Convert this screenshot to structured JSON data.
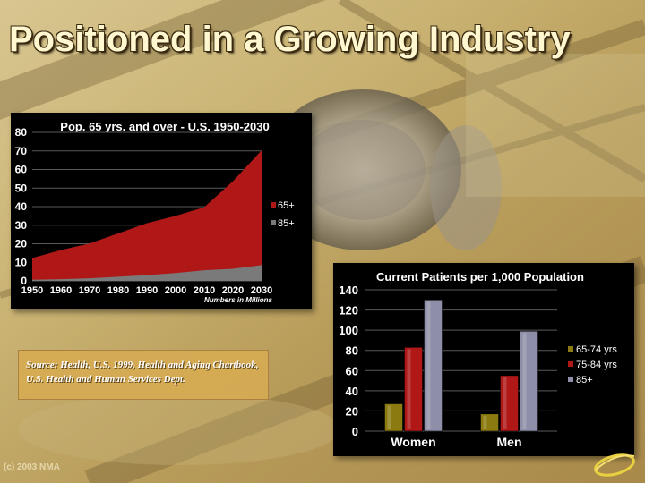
{
  "slide": {
    "title": "Positioned in a Growing Industry",
    "source": "Source: Health, U.S. 1999, Health and Aging Chartbook, U.S. Health and Human Services Dept.",
    "copyright": "(c) 2003 NMA"
  },
  "colors": {
    "red": "#b01818",
    "gray": "#7a7a7a",
    "olive": "#8a7a10",
    "lavender": "#8e8ea8",
    "panel": "#000000"
  },
  "chart_data": [
    {
      "type": "area",
      "title": "Pop. 65 yrs. and over - U.S. 1950-2030",
      "xlabel": "Numbers in Millions",
      "ylabel": "",
      "x": [
        1950,
        1960,
        1970,
        1980,
        1990,
        2000,
        2010,
        2020,
        2030
      ],
      "ylim": [
        0,
        80
      ],
      "yticks": [
        0,
        10,
        20,
        30,
        40,
        50,
        60,
        70,
        80
      ],
      "grid": true,
      "legend": "right",
      "series": [
        {
          "name": "65+",
          "values": [
            12.3,
            16.6,
            20.1,
            25.6,
            31.1,
            35.0,
            39.7,
            53.7,
            70.3
          ]
        },
        {
          "name": "85+",
          "values": [
            0.6,
            0.9,
            1.4,
            2.2,
            3.1,
            4.2,
            5.7,
            6.5,
            8.5
          ]
        }
      ]
    },
    {
      "type": "bar",
      "title": "Current Patients per 1,000 Population",
      "categories": [
        "Women",
        "Men"
      ],
      "ylim": [
        0,
        140
      ],
      "yticks": [
        0,
        20,
        40,
        60,
        80,
        100,
        120,
        140
      ],
      "grid": true,
      "legend": "right",
      "series": [
        {
          "name": "65-74 yrs",
          "values": [
            27,
            17
          ]
        },
        {
          "name": "75-84 yrs",
          "values": [
            83,
            55
          ]
        },
        {
          "name": "85+",
          "values": [
            130,
            99
          ]
        }
      ]
    }
  ]
}
